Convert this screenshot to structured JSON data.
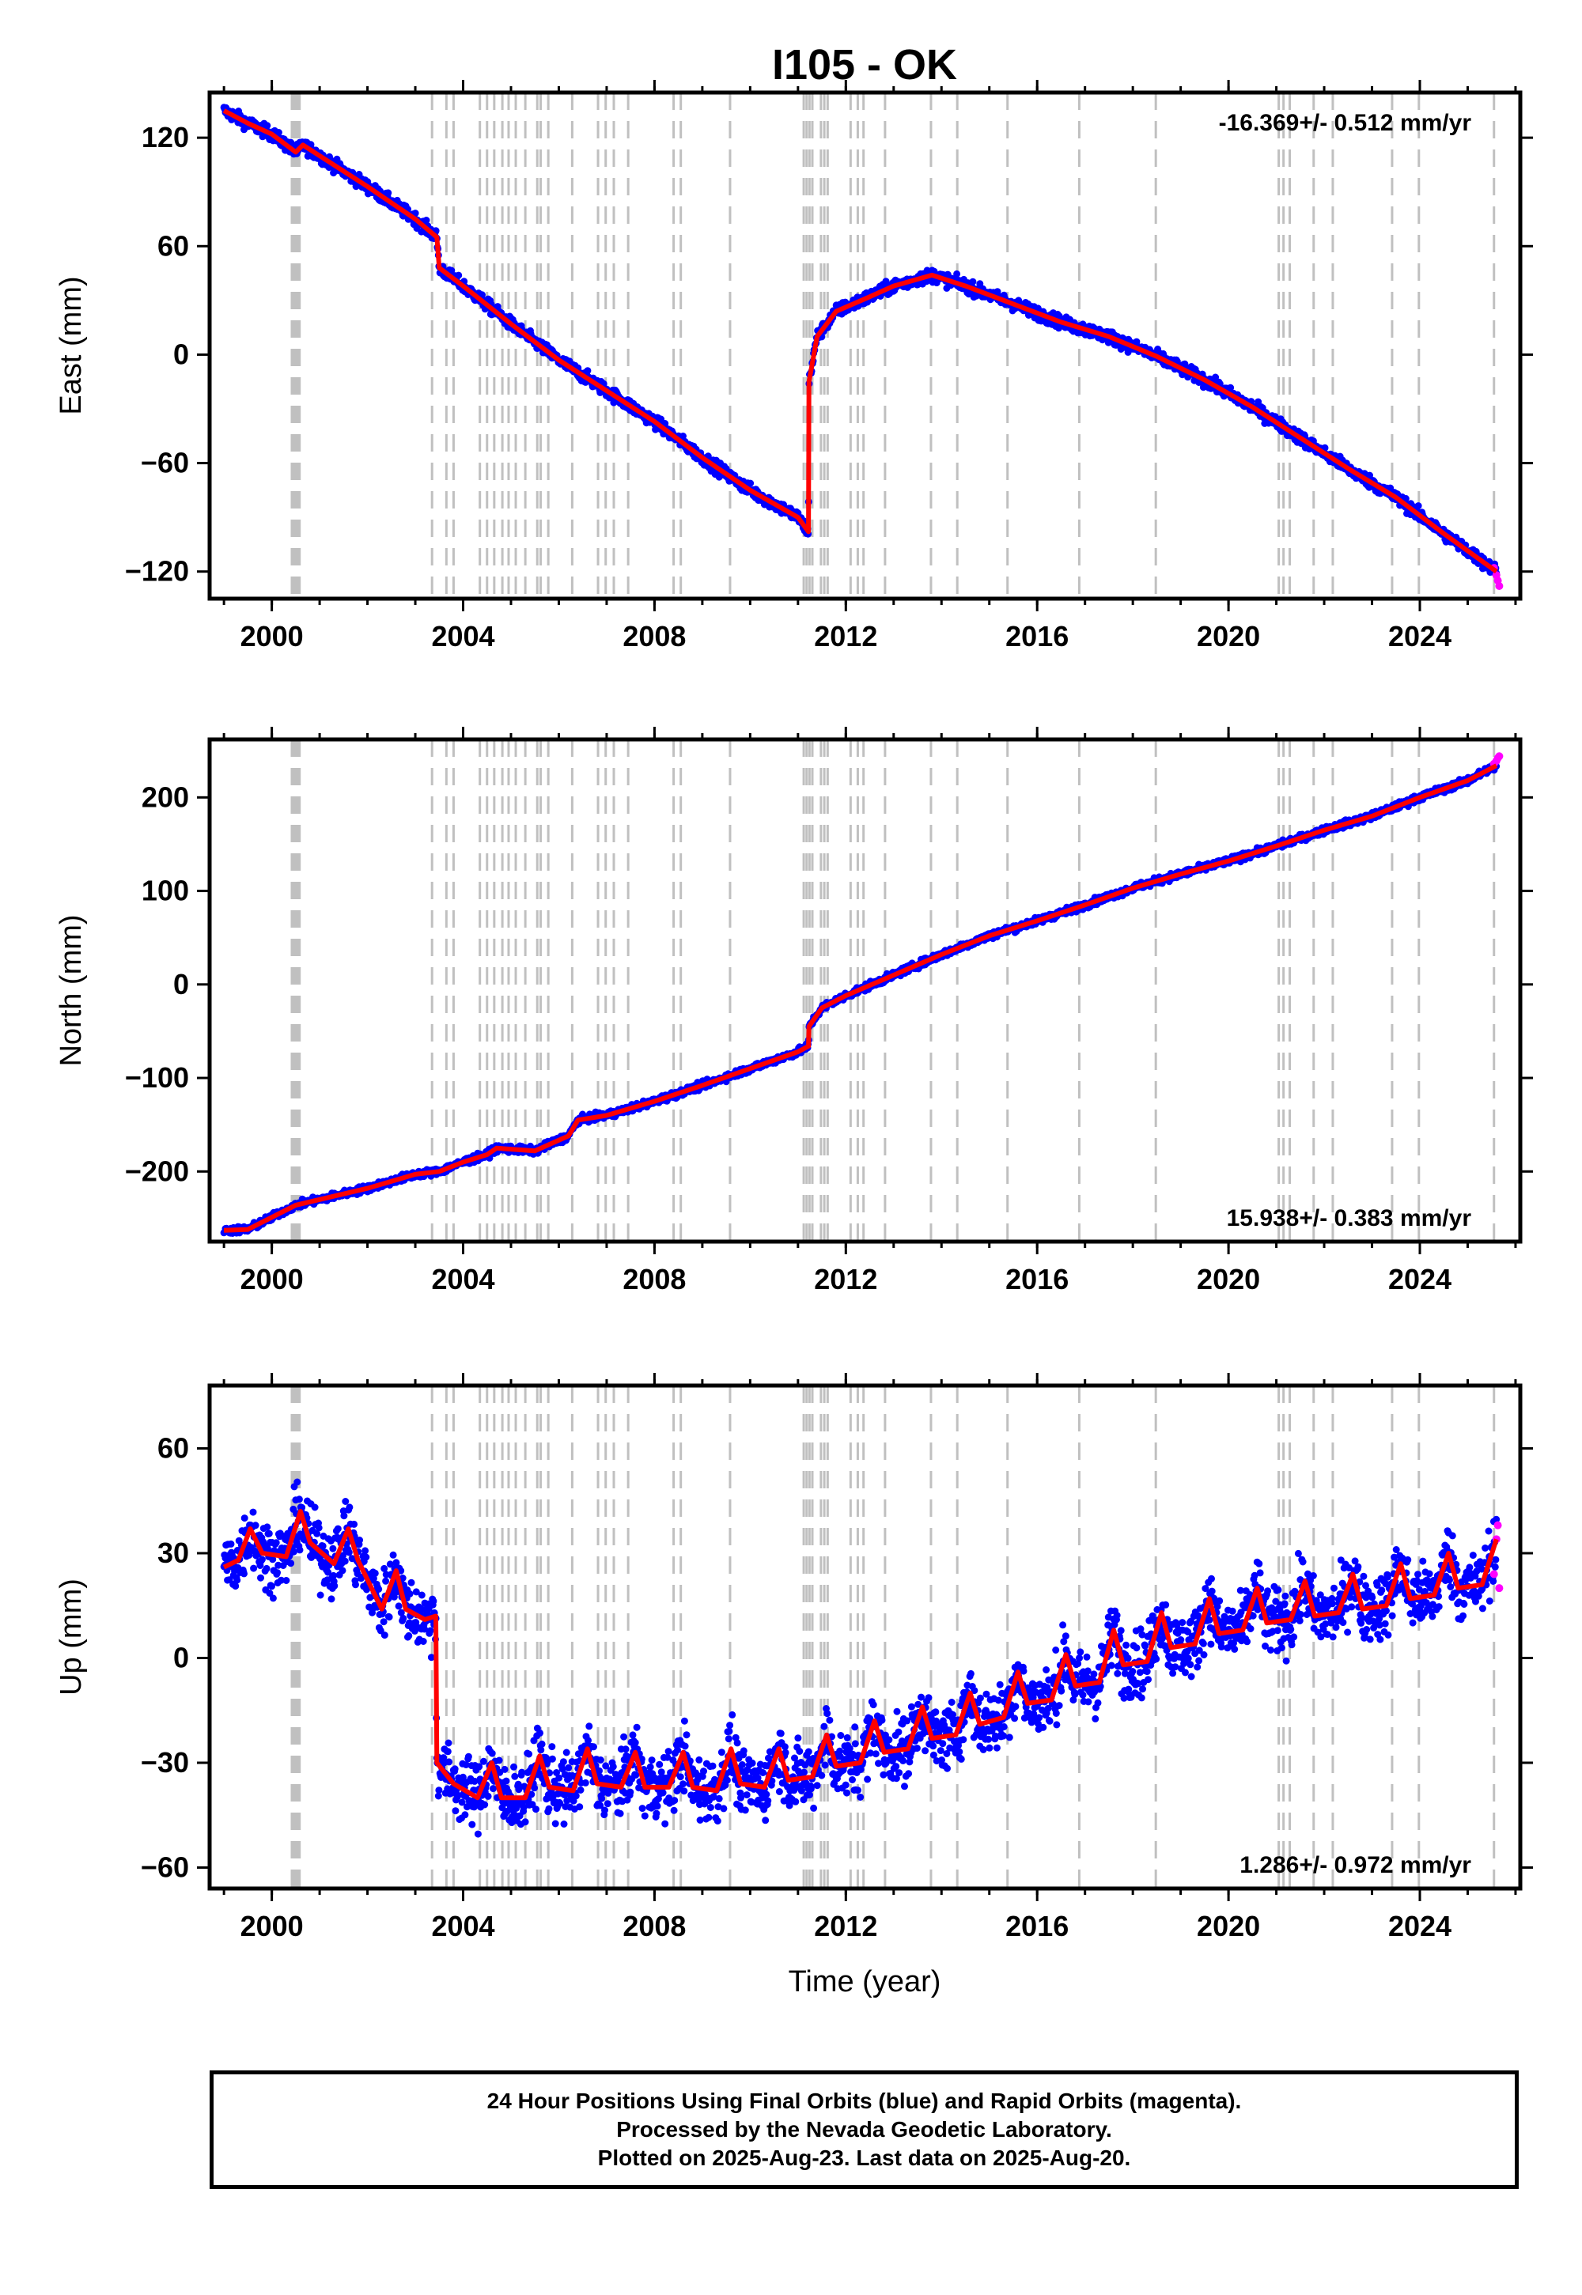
{
  "chart_data": {
    "type": "scatter",
    "title": "I105 - OK",
    "xlabel": "Time (year)",
    "xlim": [
      1998.7,
      2026.1
    ],
    "xticks": [
      2000,
      2004,
      2008,
      2012,
      2016,
      2020,
      2024
    ],
    "event_lines": [
      2000.42,
      2000.46,
      2000.5,
      2000.54,
      2000.58,
      2003.35,
      2003.65,
      2003.8,
      2004.35,
      2004.5,
      2004.65,
      2004.82,
      2004.95,
      2005.1,
      2005.3,
      2005.55,
      2005.62,
      2005.78,
      2006.28,
      2006.82,
      2006.98,
      2007.15,
      2007.45,
      2008.4,
      2008.55,
      2009.58,
      2011.12,
      2011.18,
      2011.24,
      2011.3,
      2011.48,
      2011.55,
      2011.62,
      2012.1,
      2012.25,
      2012.37,
      2012.82,
      2013.78,
      2014.33,
      2015.38,
      2016.88,
      2018.48,
      2021.05,
      2021.15,
      2021.28,
      2021.78,
      2022.18,
      2023.42,
      2023.98,
      2025.55
    ],
    "colors": {
      "final": "#0000ff",
      "rapid": "#ff00ff",
      "model": "#ff0000",
      "events": "#c0c0c0"
    },
    "panels": [
      {
        "ylabel": "East (mm)",
        "ylim": [
          -135,
          145
        ],
        "yticks": [
          -120,
          -60,
          0,
          60,
          120
        ],
        "rate": "-16.369+/- 0.512 mm/yr",
        "rate_position": "top-right",
        "series": [
          {
            "x": [
              1999.0,
              1999.5,
              2000.0,
              2000.5,
              2000.65,
              2001.0,
              2002.0,
              2003.0,
              2003.45,
              2003.5,
              2004.0,
              2005.0,
              2006.0,
              2007.0,
              2008.0,
              2009.0,
              2010.0,
              2011.0,
              2011.22,
              2011.23,
              2011.4,
              2011.8,
              2012.5,
              2013.0,
              2013.8,
              2014.5,
              2015.5,
              2016.5,
              2017.5,
              2018.5,
              2019.5,
              2020.5,
              2021.5,
              2022.5,
              2023.5,
              2024.5,
              2025.6
            ],
            "y": [
              135,
              128,
              122,
              112,
              116,
              110,
              93,
              75,
              65,
              48,
              38,
              17,
              -3,
              -20,
              -37,
              -57,
              -75,
              -90,
              -98,
              -15,
              10,
              24,
              32,
              38,
              44,
              38,
              28,
              18,
              10,
              -1,
              -14,
              -29,
              -46,
              -63,
              -79,
              -99,
              -120
            ]
          }
        ],
        "rapid": {
          "x": [
            2025.55,
            2025.6,
            2025.63,
            2025.66
          ],
          "y": [
            -118,
            -122,
            -125,
            -128
          ]
        }
      },
      {
        "ylabel": "North (mm)",
        "ylim": [
          -275,
          262
        ],
        "yticks": [
          -200,
          -100,
          0,
          100,
          200
        ],
        "rate": "15.938+/- 0.383 mm/yr",
        "rate_position": "bottom-right",
        "series": [
          {
            "x": [
              1999.0,
              1999.5,
              2000.5,
              2001.0,
              2002.0,
              2003.0,
              2003.5,
              2004.0,
              2004.5,
              2004.7,
              2005.5,
              2006.2,
              2006.4,
              2007.0,
              2008.0,
              2009.0,
              2010.0,
              2011.0,
              2011.22,
              2011.23,
              2011.5,
              2012.0,
              2013.0,
              2014.0,
              2015.0,
              2016.0,
              2017.0,
              2018.0,
              2019.0,
              2020.0,
              2021.0,
              2022.0,
              2023.0,
              2024.0,
              2025.0,
              2025.6
            ],
            "y": [
              -263,
              -262,
              -236,
              -230,
              -218,
              -203,
              -200,
              -190,
              -182,
              -175,
              -178,
              -162,
              -145,
              -140,
              -125,
              -108,
              -90,
              -72,
              -66,
              -45,
              -25,
              -12,
              10,
              32,
              52,
              68,
              85,
              103,
              118,
              132,
              148,
              165,
              180,
              200,
              218,
              234
            ]
          }
        ],
        "rapid": {
          "x": [
            2025.55,
            2025.6,
            2025.63,
            2025.66
          ],
          "y": [
            236,
            239,
            242,
            244
          ]
        }
      },
      {
        "ylabel": "Up (mm)",
        "ylim": [
          -66,
          78
        ],
        "yticks": [
          -60,
          -30,
          0,
          30,
          60
        ],
        "rate": "1.286+/- 0.972 mm/yr",
        "rate_position": "bottom-right",
        "series": [
          {
            "x": [
              1999.0,
              1999.3,
              1999.55,
              1999.8,
              2000.3,
              2000.6,
              2000.8,
              2001.3,
              2001.6,
              2001.8,
              2002.3,
              2002.6,
              2002.8,
              2003.2,
              2003.43,
              2003.45,
              2003.8,
              2004.3,
              2004.6,
              2004.8,
              2005.3,
              2005.6,
              2005.8,
              2006.3,
              2006.6,
              2006.8,
              2007.3,
              2007.6,
              2007.8,
              2008.3,
              2008.6,
              2008.8,
              2009.3,
              2009.6,
              2009.8,
              2010.3,
              2010.6,
              2010.8,
              2011.3,
              2011.6,
              2011.8,
              2012.3,
              2012.6,
              2012.8,
              2013.3,
              2013.6,
              2013.8,
              2014.3,
              2014.6,
              2014.8,
              2015.3,
              2015.6,
              2015.8,
              2016.3,
              2016.6,
              2016.8,
              2017.3,
              2017.6,
              2017.8,
              2018.3,
              2018.6,
              2018.8,
              2019.3,
              2019.6,
              2019.8,
              2020.3,
              2020.6,
              2020.8,
              2021.3,
              2021.6,
              2021.8,
              2022.3,
              2022.6,
              2022.8,
              2023.3,
              2023.6,
              2023.8,
              2024.3,
              2024.6,
              2024.8,
              2025.3,
              2025.6
            ],
            "y": [
              26,
              28,
              37,
              30,
              29,
              42,
              33,
              27,
              37,
              28,
              14,
              25,
              14,
              11,
              12,
              -30,
              -36,
              -40,
              -30,
              -40,
              -40,
              -28,
              -37,
              -38,
              -26,
              -36,
              -37,
              -27,
              -37,
              -37,
              -27,
              -37,
              -38,
              -26,
              -36,
              -37,
              -26,
              -35,
              -34,
              -22,
              -31,
              -30,
              -18,
              -27,
              -26,
              -14,
              -23,
              -22,
              -10,
              -19,
              -17,
              -4,
              -13,
              -12,
              1,
              -8,
              -7,
              8,
              -2,
              -1,
              13,
              3,
              4,
              17,
              7,
              8,
              20,
              10,
              11,
              22,
              12,
              13,
              24,
              14,
              15,
              27,
              17,
              18,
              30,
              20,
              21,
              34
            ]
          }
        ],
        "rapid": {
          "x": [
            2025.55,
            2025.6,
            2025.63,
            2025.66
          ],
          "y": [
            24,
            34,
            38,
            20
          ]
        }
      }
    ]
  },
  "footer": {
    "line1": "24 Hour Positions Using Final Orbits (blue) and Rapid Orbits (magenta).",
    "line2": "Processed by the Nevada Geodetic Laboratory.",
    "line3": "Plotted on 2025-Aug-23. Last data on 2025-Aug-20."
  }
}
